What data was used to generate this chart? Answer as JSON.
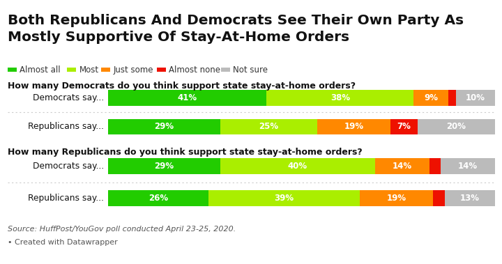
{
  "title_line1": "Both Republicans And Democrats See Their Own Party As",
  "title_line2": "Mostly Supportive Of Stay-At-Home Orders",
  "legend_labels": [
    "Almost all",
    "Most",
    "Just some",
    "Almost none",
    "Not sure"
  ],
  "legend_colors": [
    "#22cc00",
    "#aaee00",
    "#ff8800",
    "#ee1100",
    "#bbbbbb"
  ],
  "section1_title": "How many Democrats do you think support state stay-at-home orders?",
  "section2_title": "How many Republicans do you think support state stay-at-home orders?",
  "rows": [
    {
      "label": "Democrats say...",
      "values": [
        41,
        38,
        9,
        2,
        10
      ]
    },
    {
      "label": "Republicans say...",
      "values": [
        29,
        25,
        19,
        7,
        20
      ]
    },
    {
      "label": "Democrats say...",
      "values": [
        29,
        40,
        14,
        3,
        14
      ]
    },
    {
      "label": "Republicans say...",
      "values": [
        26,
        39,
        19,
        3,
        13
      ]
    }
  ],
  "colors": [
    "#22cc00",
    "#aaee00",
    "#ff8800",
    "#ee1100",
    "#bbbbbb"
  ],
  "source_text": "Source: HuffPost/YouGov poll conducted April 23-25, 2020.",
  "credit_text": "• Created with Datawrapper",
  "bg_color": "#ffffff",
  "show_values": [
    [
      true,
      true,
      true,
      false,
      true
    ],
    [
      true,
      true,
      true,
      true,
      true
    ],
    [
      true,
      true,
      true,
      false,
      true
    ],
    [
      true,
      true,
      true,
      false,
      true
    ]
  ]
}
